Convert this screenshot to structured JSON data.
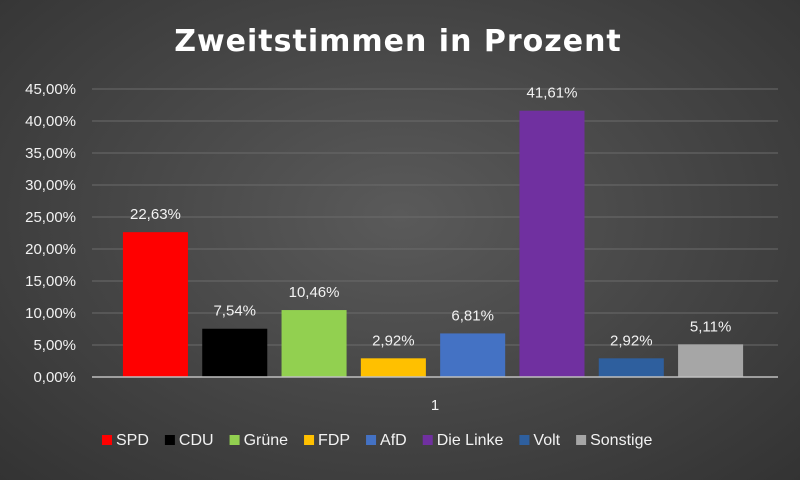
{
  "chart_data": {
    "type": "bar",
    "title": "Zweitstimmen in Prozent",
    "categories": [
      "1"
    ],
    "series": [
      {
        "name": "SPD",
        "value": 22.63,
        "label": "22,63%",
        "color": "#ff0000"
      },
      {
        "name": "CDU",
        "value": 7.54,
        "label": "7,54%",
        "color": "#000000"
      },
      {
        "name": "Grüne",
        "value": 10.46,
        "label": "10,46%",
        "color": "#92d050"
      },
      {
        "name": "FDP",
        "value": 2.92,
        "label": "2,92%",
        "color": "#ffc000"
      },
      {
        "name": "AfD",
        "value": 6.81,
        "label": "6,81%",
        "color": "#4472c4"
      },
      {
        "name": "Die Linke",
        "value": 41.61,
        "label": "41,61%",
        "color": "#7030a0"
      },
      {
        "name": "Volt",
        "value": 2.92,
        "label": "2,92%",
        "color": "#2e5f9e"
      },
      {
        "name": "Sonstige",
        "value": 5.11,
        "label": "5,11%",
        "color": "#a6a6a6"
      }
    ],
    "y_ticks": [
      "0,00%",
      "5,00%",
      "10,00%",
      "15,00%",
      "20,00%",
      "25,00%",
      "30,00%",
      "35,00%",
      "40,00%",
      "45,00%"
    ],
    "ylim": [
      0,
      45
    ],
    "grid": true,
    "legend_position": "bottom"
  }
}
